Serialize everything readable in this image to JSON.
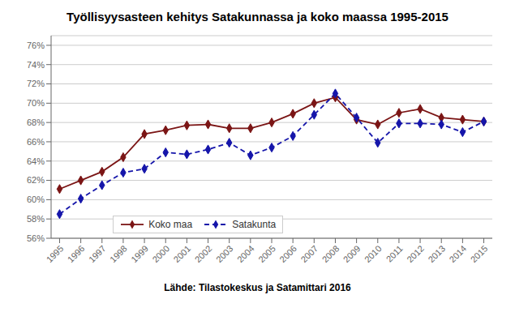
{
  "chart_data": {
    "type": "line",
    "title": "Työllisyysasteen kehitys Satakunnassa ja koko maassa 1995-2015",
    "subtitle": "Lähde: Tilastokeskus ja Satamittari 2016",
    "x": [
      1995,
      1996,
      1997,
      1998,
      1999,
      2000,
      2001,
      2002,
      2003,
      2004,
      2005,
      2006,
      2007,
      2008,
      2009,
      2010,
      2011,
      2012,
      2013,
      2014,
      2015
    ],
    "series": [
      {
        "name": "Koko maa",
        "color": "#7B1515",
        "marker": "diamond",
        "line_style": "solid",
        "values": [
          61.1,
          62.0,
          62.9,
          64.4,
          66.8,
          67.2,
          67.7,
          67.8,
          67.4,
          67.4,
          68.0,
          68.9,
          70.0,
          70.6,
          68.3,
          67.8,
          69.0,
          69.4,
          68.5,
          68.3,
          68.1
        ]
      },
      {
        "name": "Satakunta",
        "color": "#1515AA",
        "marker": "diamond",
        "line_style": "dashed",
        "values": [
          58.5,
          60.1,
          61.5,
          62.8,
          63.2,
          64.9,
          64.7,
          65.2,
          65.9,
          64.6,
          65.4,
          66.6,
          68.8,
          71.0,
          68.5,
          65.9,
          67.9,
          67.9,
          67.8,
          67.0,
          68.1
        ]
      }
    ],
    "xlim": [
      1994.6,
      2015.4
    ],
    "xticks": [
      1995,
      1996,
      1997,
      1998,
      1999,
      2000,
      2001,
      2002,
      2003,
      2004,
      2005,
      2006,
      2007,
      2008,
      2009,
      2010,
      2011,
      2012,
      2013,
      2014,
      2015
    ],
    "ylim": [
      56,
      77
    ],
    "yticks": [
      {
        "value": 56,
        "label": "56%"
      },
      {
        "value": 58,
        "label": "58%"
      },
      {
        "value": 60,
        "label": "60%"
      },
      {
        "value": 62,
        "label": "62%"
      },
      {
        "value": 64,
        "label": "64%"
      },
      {
        "value": 66,
        "label": "66%"
      },
      {
        "value": 68,
        "label": "68%"
      },
      {
        "value": 70,
        "label": "70%"
      },
      {
        "value": 72,
        "label": "72%"
      },
      {
        "value": 74,
        "label": "74%"
      },
      {
        "value": 76,
        "label": "76%"
      }
    ],
    "grid": true,
    "legend": "lower left"
  }
}
